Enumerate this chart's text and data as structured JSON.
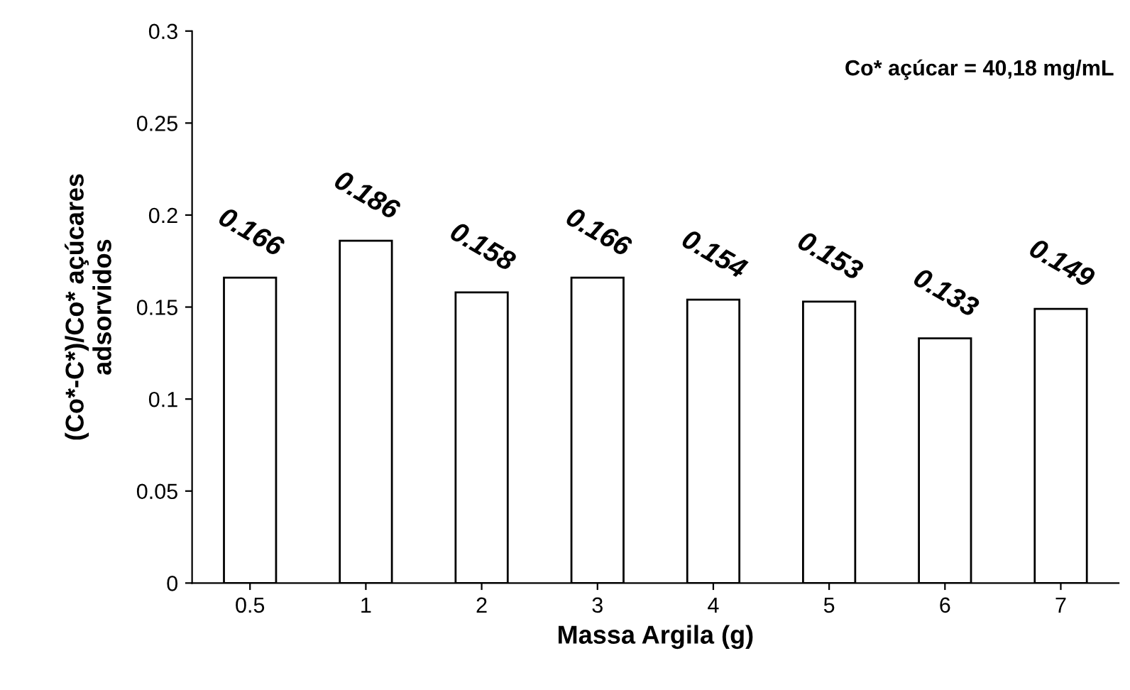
{
  "chart_data": {
    "type": "bar",
    "categories": [
      "0.5",
      "1",
      "2",
      "3",
      "4",
      "5",
      "6",
      "7"
    ],
    "values": [
      0.166,
      0.186,
      0.158,
      0.166,
      0.154,
      0.153,
      0.133,
      0.149
    ],
    "color": "#ffffff",
    "xlabel": "Massa Argila (g)",
    "ylabel": "(Co*-C*)/Co* açúcares\nadsorvidos",
    "annotations": [
      "Co* açúcar = 40,18 mg/mL"
    ],
    "ylim": [
      0,
      0.3
    ],
    "yticks": [
      {
        "value": 0,
        "label": "0"
      },
      {
        "value": 0.05,
        "label": "0.05"
      },
      {
        "value": 0.1,
        "label": "0.1"
      },
      {
        "value": 0.15,
        "label": "0.15"
      },
      {
        "value": 0.2,
        "label": "0.2"
      },
      {
        "value": 0.25,
        "label": "0.25"
      },
      {
        "value": 0.3,
        "label": "0.3"
      }
    ],
    "data_labels": true,
    "grid": false,
    "legend": false
  }
}
